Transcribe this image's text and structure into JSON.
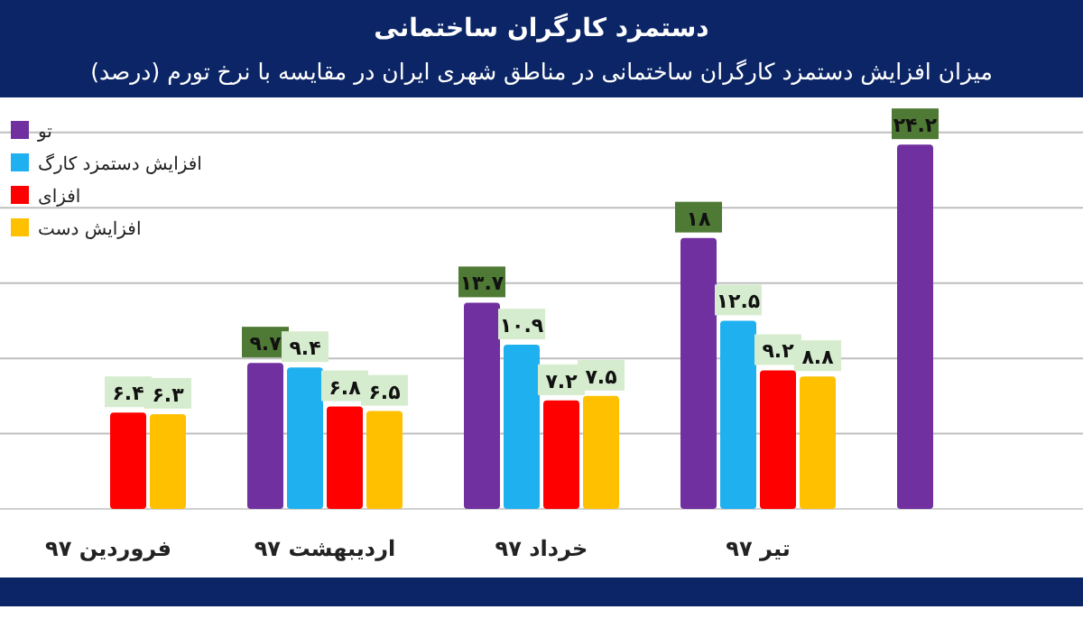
{
  "chart_data": {
    "type": "bar",
    "title": "دستمزد کارگران ساختمانی",
    "subtitle": "میزان افزایش دستمزد کارگران ساختمانی در مناطق شهری ایران در مقایسه با نرخ تورم (درصد)",
    "categories": [
      "فروردین ۹۷",
      "اردیبهشت ۹۷",
      "خرداد ۹۷",
      "تیر ۹۷",
      null
    ],
    "series": [
      {
        "name": "تو",
        "color": "#7030a0",
        "values": [
          null,
          9.7,
          13.7,
          18,
          24.2
        ],
        "value_labels": [
          null,
          "۹.۷",
          "۱۳.۷",
          "۱۸",
          "۲۴.۲"
        ]
      },
      {
        "name": "افزایش دستمزد کارگ",
        "color": "#1fb0f0",
        "values": [
          null,
          9.4,
          10.9,
          12.5,
          null
        ],
        "value_labels": [
          null,
          "۹.۴",
          "۱۰.۹",
          "۱۲.۵",
          null
        ]
      },
      {
        "name": "افزای",
        "color": "#ff0000",
        "values": [
          6.4,
          6.8,
          7.2,
          9.2,
          null
        ],
        "value_labels": [
          "۶.۴",
          "۶.۸",
          "۷.۲",
          "۹.۲",
          null
        ]
      },
      {
        "name": "افزایش دست",
        "color": "#ffc000",
        "values": [
          6.3,
          6.5,
          7.5,
          8.8,
          null
        ],
        "value_labels": [
          "۶.۳",
          "۶.۵",
          "۷.۵",
          "۸.۸",
          null
        ]
      }
    ],
    "grid": "y",
    "legend": "top left",
    "tick_labels": "x"
  }
}
